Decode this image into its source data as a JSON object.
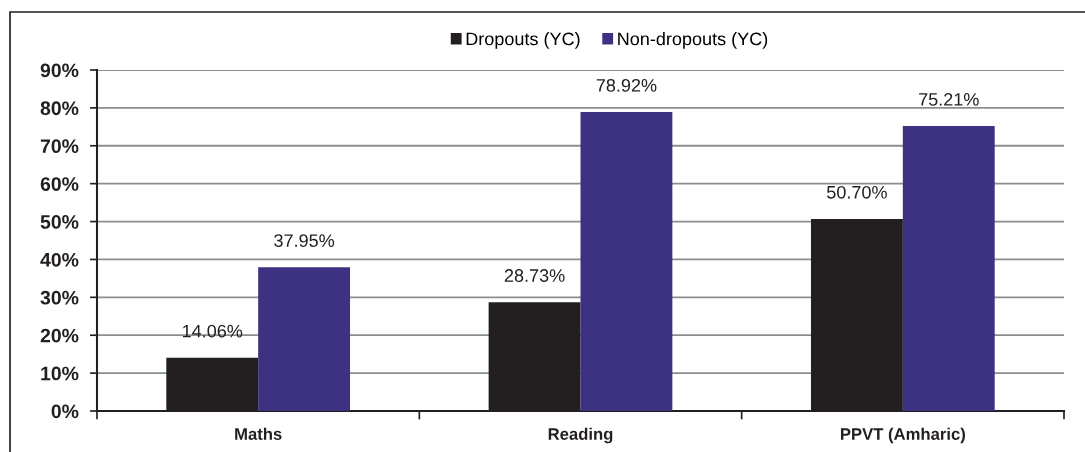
{
  "chart_data": {
    "type": "bar",
    "categories": [
      "Maths",
      "Reading",
      "PPVT (Amharic)"
    ],
    "series": [
      {
        "name": "Dropouts (YC)",
        "color": "#231f20",
        "values": [
          14.06,
          28.73,
          50.7
        ],
        "value_labels": [
          "14.06%",
          "28.73%",
          "50.70%"
        ]
      },
      {
        "name": "Non-dropouts (YC)",
        "color": "#3d3282",
        "values": [
          37.95,
          78.92,
          75.21
        ],
        "value_labels": [
          "37.95%",
          "78.92%",
          "75.21%"
        ]
      }
    ],
    "ylim": [
      0,
      90
    ],
    "yticks": [
      {
        "value": 0,
        "label": "0%"
      },
      {
        "value": 10,
        "label": "10%"
      },
      {
        "value": 20,
        "label": "20%"
      },
      {
        "value": 30,
        "label": "30%"
      },
      {
        "value": 40,
        "label": "40%"
      },
      {
        "value": 50,
        "label": "50%"
      },
      {
        "value": 60,
        "label": "60%"
      },
      {
        "value": 70,
        "label": "70%"
      },
      {
        "value": 80,
        "label": "80%"
      },
      {
        "value": 90,
        "label": "90%"
      }
    ],
    "grid": "y",
    "legend": "top"
  }
}
